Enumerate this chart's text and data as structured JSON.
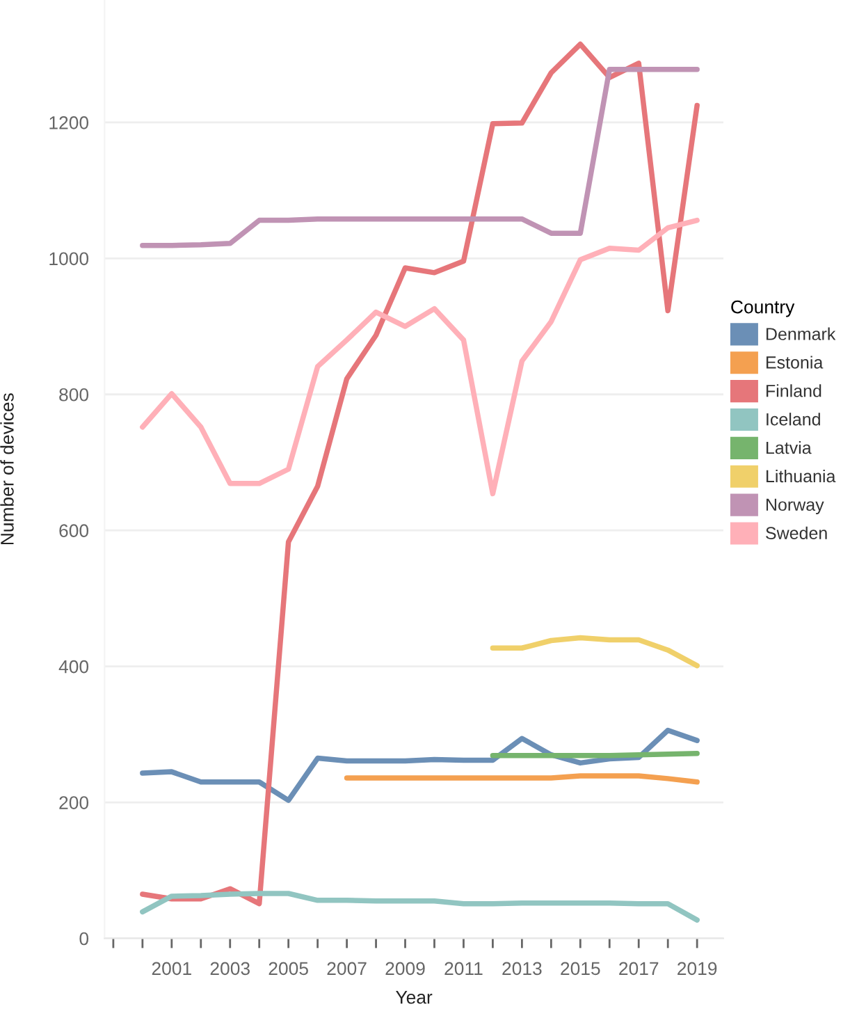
{
  "chart_data": {
    "type": "line",
    "xlabel": "Year",
    "ylabel": "Number of devices",
    "legend_title": "Country",
    "x": [
      2000,
      2001,
      2002,
      2003,
      2004,
      2005,
      2006,
      2007,
      2008,
      2009,
      2010,
      2011,
      2012,
      2013,
      2014,
      2015,
      2016,
      2017,
      2018,
      2019
    ],
    "series": [
      {
        "name": "Denmark",
        "color": "#6b8fb6",
        "values": [
          243,
          245,
          230,
          230,
          230,
          203,
          265,
          261,
          261,
          261,
          263,
          262,
          262,
          294,
          270,
          258,
          264,
          266,
          306,
          291
        ]
      },
      {
        "name": "Estonia",
        "color": "#f4a050",
        "values": [
          null,
          null,
          null,
          null,
          null,
          null,
          null,
          236,
          236,
          236,
          236,
          236,
          236,
          236,
          236,
          239,
          239,
          239,
          235,
          230
        ]
      },
      {
        "name": "Finland",
        "color": "#e6767a",
        "values": [
          65,
          58,
          58,
          73,
          51,
          583,
          665,
          823,
          887,
          986,
          979,
          996,
          1198,
          1199,
          1273,
          1315,
          1266,
          1287,
          923,
          1225
        ]
      },
      {
        "name": "Iceland",
        "color": "#91c5c1",
        "values": [
          39,
          62,
          63,
          65,
          66,
          66,
          56,
          56,
          55,
          55,
          55,
          51,
          51,
          52,
          52,
          52,
          52,
          51,
          51,
          27
        ]
      },
      {
        "name": "Latvia",
        "color": "#76b46d",
        "values": [
          null,
          null,
          null,
          null,
          null,
          null,
          null,
          null,
          null,
          null,
          null,
          null,
          269,
          269,
          269,
          269,
          269,
          270,
          271,
          272
        ]
      },
      {
        "name": "Lithuania",
        "color": "#f0d06a",
        "values": [
          null,
          null,
          null,
          null,
          null,
          null,
          null,
          null,
          null,
          null,
          null,
          null,
          427,
          427,
          438,
          442,
          439,
          439,
          424,
          401
        ]
      },
      {
        "name": "Norway",
        "color": "#c093b4",
        "values": [
          1019,
          1019,
          1020,
          1022,
          1056,
          1056,
          1058,
          1058,
          1058,
          1058,
          1058,
          1058,
          1058,
          1058,
          1037,
          1037,
          1278,
          1278,
          1278,
          1278
        ]
      },
      {
        "name": "Sweden",
        "color": "#ffb0b8",
        "values": [
          752,
          801,
          752,
          669,
          669,
          690,
          841,
          880,
          921,
          900,
          926,
          880,
          654,
          849,
          907,
          998,
          1015,
          1012,
          1045,
          1056
        ]
      }
    ],
    "xlim": [
      1998.7,
      2019.9
    ],
    "xticks": [
      {
        "value": 1999,
        "label": null
      },
      {
        "value": 2000,
        "label": null
      },
      2001,
      {
        "value": 2002,
        "label": null
      },
      2003,
      {
        "value": 2004,
        "label": null
      },
      2005,
      {
        "value": 2006,
        "label": null
      },
      2007,
      {
        "value": 2008,
        "label": null
      },
      2009,
      {
        "value": 2010,
        "label": null
      },
      2011,
      {
        "value": 2012,
        "label": null
      },
      2013,
      {
        "value": 2014,
        "label": null
      },
      2015,
      {
        "value": 2016,
        "label": null
      },
      2017,
      {
        "value": 2018,
        "label": null
      },
      2019
    ],
    "ylim": [
      0,
      1380
    ],
    "yticks": [
      0,
      200,
      400,
      600,
      800,
      1000,
      1200
    ],
    "grid": "y",
    "legend": "right"
  }
}
